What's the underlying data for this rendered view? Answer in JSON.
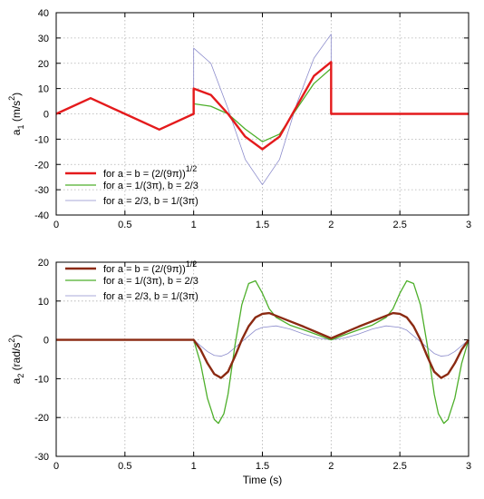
{
  "chart_data": [
    {
      "type": "line",
      "xlim": [
        0,
        3
      ],
      "ylim": [
        -40,
        40
      ],
      "xticks": [
        "0",
        "0.5",
        "1",
        "1.5",
        "2",
        "2.5",
        "3"
      ],
      "yticks": [
        "-40",
        "-30",
        "-20",
        "-10",
        "0",
        "10",
        "20",
        "30",
        "40"
      ],
      "xlabel": "",
      "ylabel": {
        "base": "a",
        "sub": "1",
        "unit": " (m/s",
        "sup": "2",
        "close": ")"
      },
      "grid": true,
      "legend_position": "bottom-left",
      "series": [
        {
          "label": "for a = b = (2/(9π))",
          "label_sup": "1/2",
          "color": "#e41a1c",
          "x": [
            0.0,
            0.25,
            0.5,
            0.75,
            1.0,
            1.0,
            1.125,
            1.25,
            1.375,
            1.5,
            1.625,
            1.75,
            1.875,
            2.0,
            2.0,
            3.0
          ],
          "y": [
            0.0,
            6.2,
            0.0,
            -6.2,
            0.0,
            10.0,
            7.5,
            0.0,
            -9.0,
            -14.0,
            -9.0,
            3.0,
            15.0,
            20.5,
            0.0,
            0.0
          ]
        },
        {
          "label": "for a = 1/(3π), b = 2/3",
          "label_sup": "",
          "color": "#4daf2a",
          "x": [
            0.0,
            0.25,
            0.5,
            0.75,
            1.0,
            1.0,
            1.125,
            1.25,
            1.375,
            1.5,
            1.625,
            1.75,
            1.875,
            2.0,
            2.0,
            3.0
          ],
          "y": [
            0.0,
            6.2,
            0.0,
            -6.2,
            0.0,
            4.0,
            3.0,
            0.0,
            -6.0,
            -11.0,
            -8.0,
            2.0,
            12.0,
            18.0,
            0.0,
            0.0
          ]
        },
        {
          "label": "for a = 2/3, b = 1/(3π)",
          "label_sup": "",
          "color": "#8c8ccc",
          "x": [
            0.0,
            0.25,
            0.5,
            0.75,
            1.0,
            1.0,
            1.125,
            1.25,
            1.375,
            1.5,
            1.625,
            1.75,
            1.875,
            2.0,
            2.0,
            3.0
          ],
          "y": [
            0.0,
            6.2,
            0.0,
            -6.2,
            0.0,
            26.0,
            20.0,
            2.0,
            -18.0,
            -28.0,
            -18.0,
            4.0,
            22.0,
            31.5,
            0.0,
            0.0
          ]
        }
      ]
    },
    {
      "type": "line",
      "xlim": [
        0,
        3
      ],
      "ylim": [
        -30,
        20
      ],
      "xticks": [
        "0",
        "0.5",
        "1",
        "1.5",
        "2",
        "2.5",
        "3"
      ],
      "yticks": [
        "-30",
        "-20",
        "-10",
        "0",
        "10",
        "20"
      ],
      "xlabel": "Time (s)",
      "ylabel": {
        "base": "a",
        "sub": "2",
        "unit": " (rad/s",
        "sup": "2",
        "close": ")"
      },
      "grid": true,
      "legend_position": "top-left",
      "series": [
        {
          "label": "for a = b = (2/(9π))",
          "label_sup": "1/2",
          "color": "#8b2a12",
          "x": [
            0.0,
            1.0,
            1.05,
            1.1,
            1.15,
            1.2,
            1.25,
            1.3,
            1.35,
            1.4,
            1.45,
            1.5,
            1.55,
            1.6,
            1.7,
            1.8,
            1.9,
            2.0,
            2.1,
            2.2,
            2.3,
            2.4,
            2.45,
            2.5,
            2.55,
            2.6,
            2.65,
            2.7,
            2.75,
            2.8,
            2.85,
            2.9,
            2.95,
            3.0
          ],
          "y": [
            0.0,
            0.0,
            -2.5,
            -6.0,
            -8.8,
            -9.8,
            -8.2,
            -4.3,
            0.0,
            3.5,
            5.8,
            6.7,
            6.9,
            6.2,
            4.8,
            3.4,
            1.9,
            0.4,
            1.9,
            3.4,
            4.8,
            6.2,
            6.9,
            6.7,
            5.8,
            3.5,
            0.0,
            -4.3,
            -8.2,
            -9.8,
            -8.8,
            -6.0,
            -2.5,
            0.0
          ]
        },
        {
          "label": "for a = 1/(3π), b = 2/3",
          "label_sup": "",
          "color": "#4daf2a",
          "x": [
            0.0,
            1.0,
            1.05,
            1.1,
            1.15,
            1.18,
            1.22,
            1.25,
            1.3,
            1.35,
            1.4,
            1.45,
            1.5,
            1.55,
            1.6,
            1.7,
            1.8,
            1.9,
            2.0,
            2.1,
            2.2,
            2.3,
            2.4,
            2.45,
            2.5,
            2.55,
            2.6,
            2.65,
            2.7,
            2.75,
            2.78,
            2.82,
            2.85,
            2.9,
            2.95,
            3.0
          ],
          "y": [
            0.0,
            0.0,
            -6.0,
            -15.0,
            -20.5,
            -21.5,
            -19.0,
            -14.0,
            -1.5,
            9.0,
            14.5,
            15.2,
            12.0,
            8.0,
            5.8,
            3.8,
            2.6,
            1.3,
            0.0,
            1.3,
            2.6,
            3.8,
            5.8,
            8.0,
            12.0,
            15.2,
            14.5,
            9.0,
            -1.5,
            -14.0,
            -19.0,
            -21.5,
            -20.5,
            -15.0,
            -6.0,
            0.0
          ]
        },
        {
          "label": "for a = 2/3, b = 1/(3π)",
          "label_sup": "",
          "color": "#8c8ccc",
          "x": [
            0.0,
            1.0,
            1.05,
            1.1,
            1.15,
            1.2,
            1.25,
            1.3,
            1.35,
            1.4,
            1.45,
            1.5,
            1.6,
            1.7,
            1.8,
            1.9,
            2.0,
            2.1,
            2.2,
            2.3,
            2.4,
            2.5,
            2.55,
            2.6,
            2.65,
            2.7,
            2.75,
            2.8,
            2.85,
            2.9,
            2.95,
            3.0
          ],
          "y": [
            0.0,
            0.0,
            -1.5,
            -3.0,
            -4.0,
            -4.2,
            -3.5,
            -2.0,
            -0.5,
            1.0,
            2.5,
            3.2,
            3.6,
            2.8,
            1.5,
            0.5,
            0.0,
            0.5,
            1.5,
            2.8,
            3.6,
            3.2,
            2.5,
            1.0,
            -0.5,
            -2.0,
            -3.5,
            -4.2,
            -4.0,
            -3.0,
            -1.5,
            0.0
          ]
        }
      ]
    }
  ]
}
